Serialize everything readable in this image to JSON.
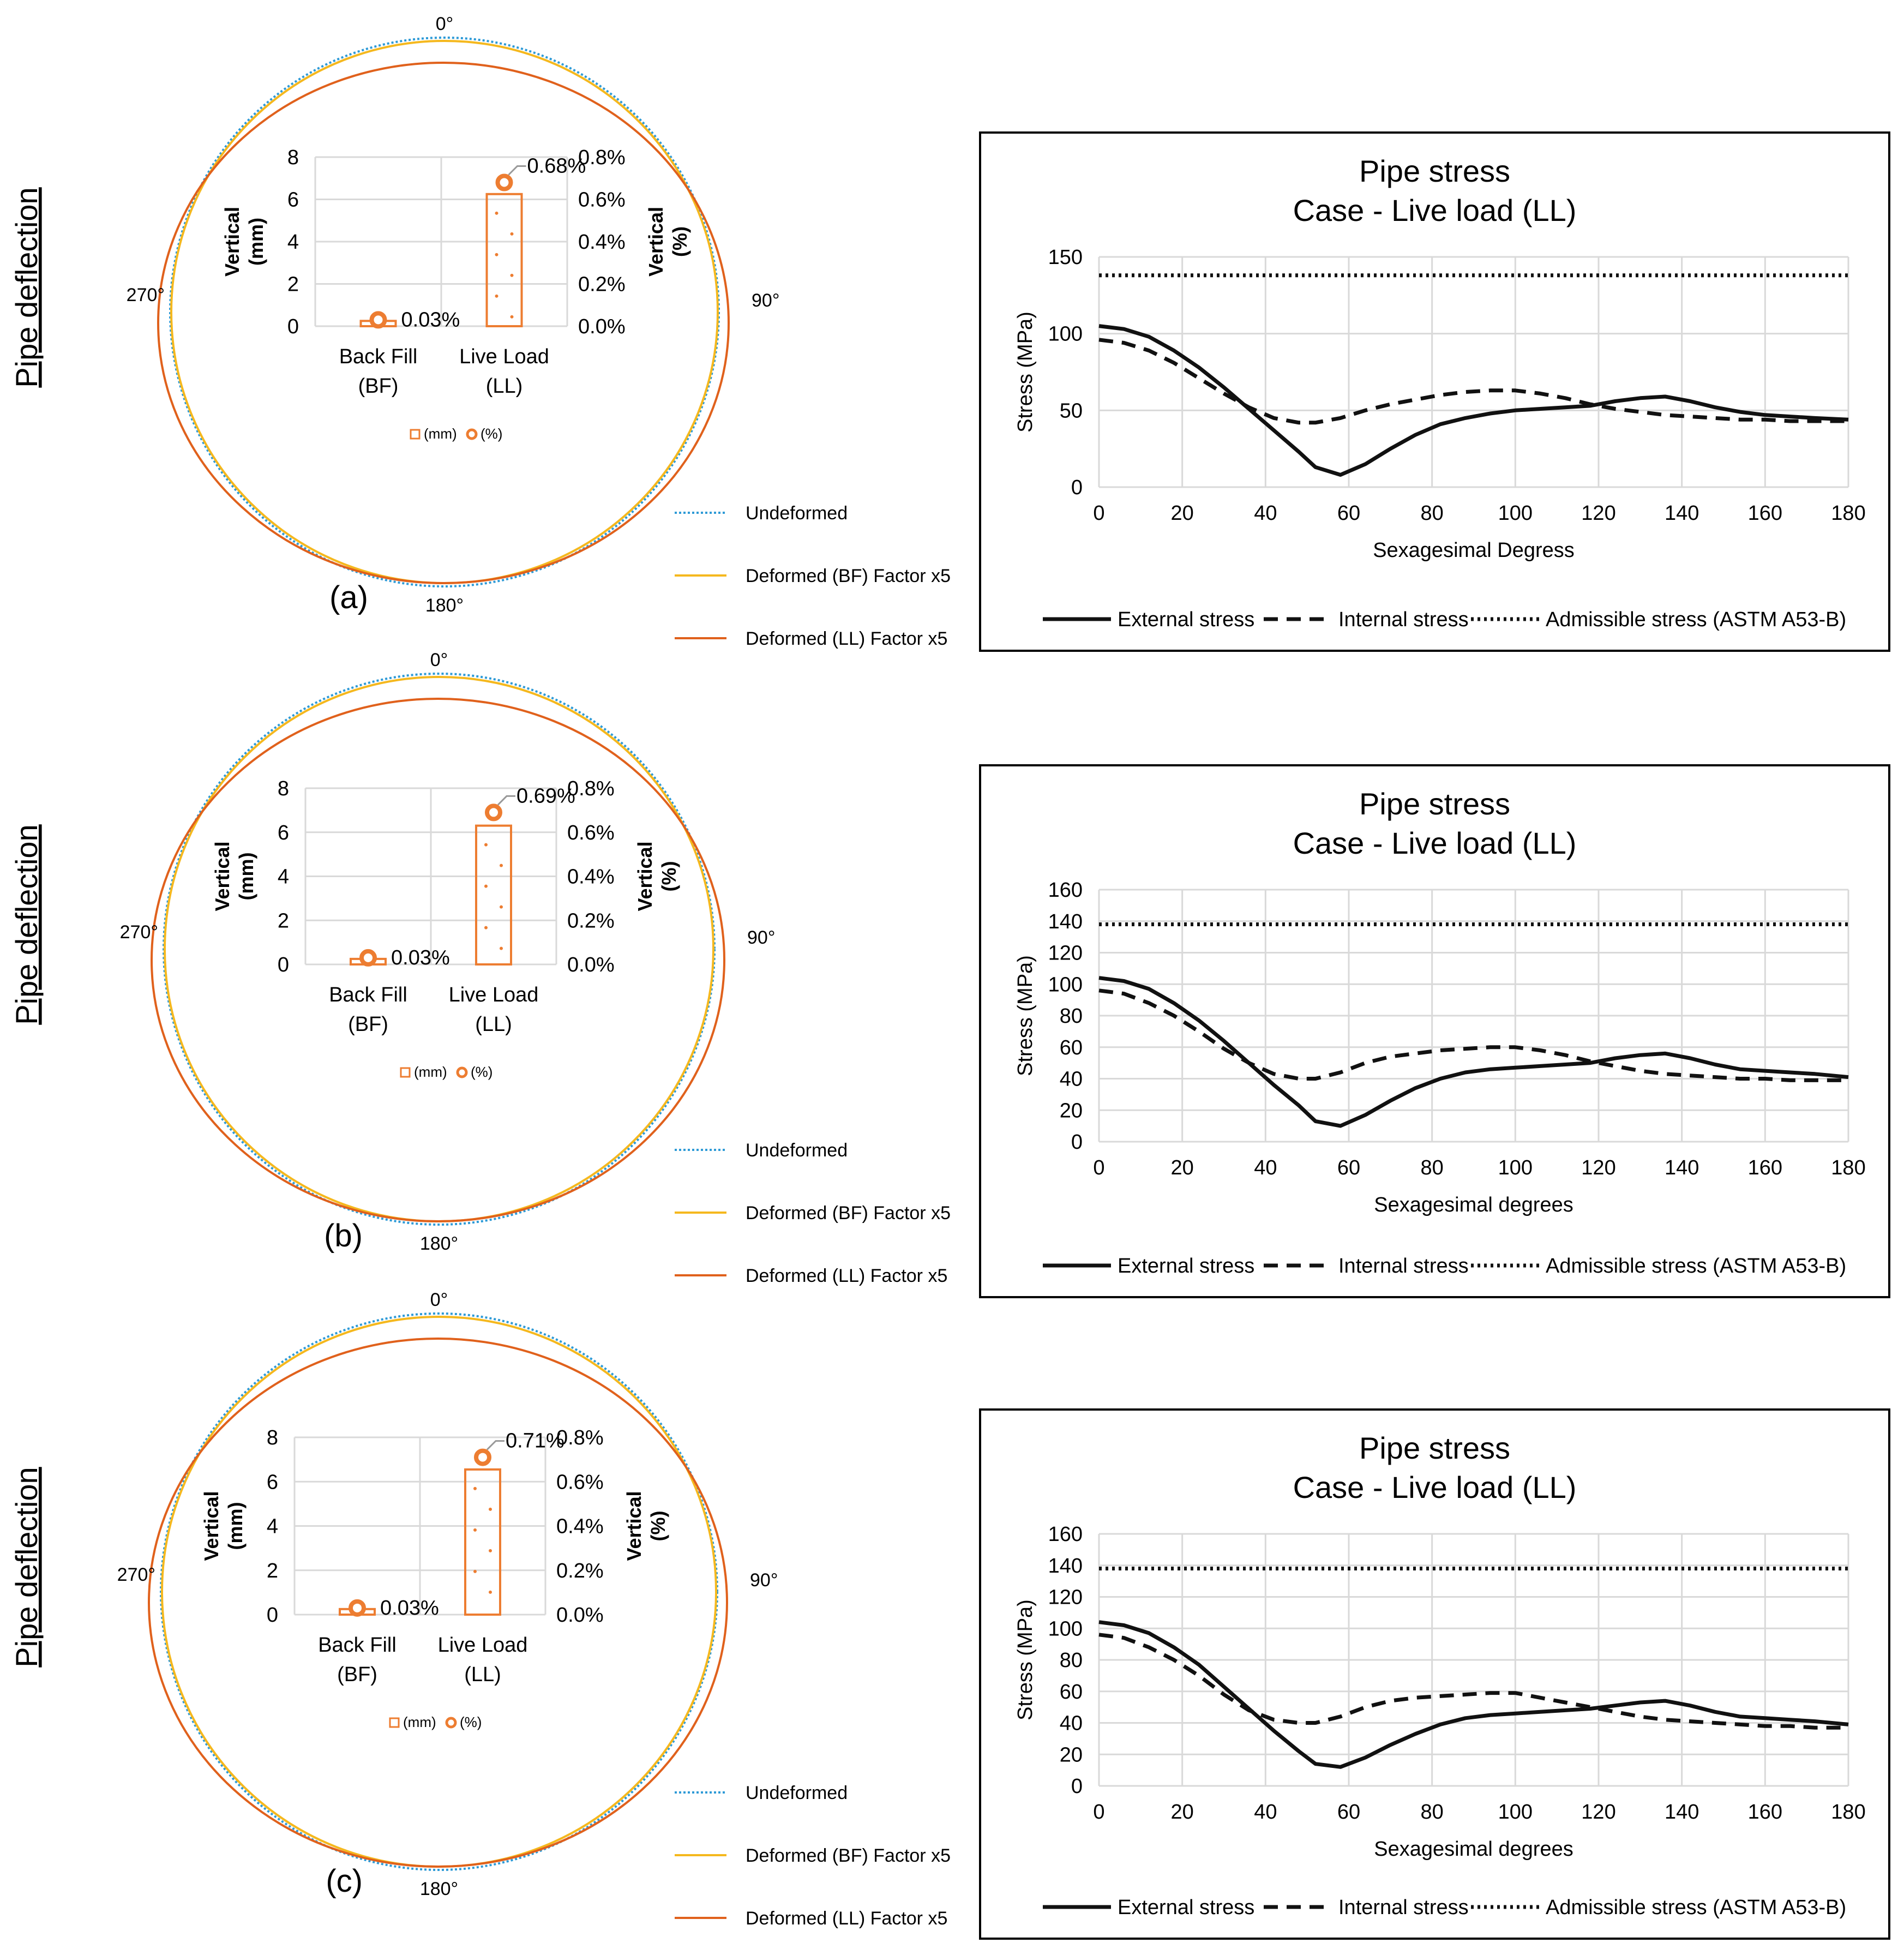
{
  "colors": {
    "undeformed": "#2e9ad6",
    "deformed_bf": "#f5b81e",
    "deformed_ll": "#e0611c",
    "bar": "#ed7d31",
    "stress_line": "#111111",
    "grid": "#d9d9d9",
    "frame": "#000000"
  },
  "panels": [
    {
      "id": "a",
      "section_title": "Pipe deflection",
      "panel_label": "(a)",
      "angles": {
        "top": "0°",
        "right": "90°",
        "bottom": "180°",
        "left": "270°"
      },
      "legend": {
        "undeformed": "Undeformed",
        "deformed_bf": "Deformed (BF) Factor x5",
        "deformed_ll": "Deformed (LL) Factor x5"
      },
      "inset": {
        "categories": [
          [
            "Back Fill",
            "(BF)"
          ],
          [
            "Live Load",
            "(LL)"
          ]
        ],
        "mm_values": [
          0.25,
          6.25
        ],
        "pct_values": [
          0.03,
          0.68
        ],
        "pct_labels": [
          "0.03%",
          "0.68%"
        ],
        "left_ticks": [
          "0",
          "2",
          "4",
          "6",
          "8"
        ],
        "right_ticks": [
          "0.0%",
          "0.2%",
          "0.4%",
          "0.6%",
          "0.8%"
        ],
        "left_axis_title": [
          "Vertical",
          "(mm)"
        ],
        "right_axis_title": [
          "Vertical",
          "(%)"
        ],
        "legend_mm": "(mm)",
        "legend_pct": "(%)"
      },
      "chart_data": {
        "type": "line",
        "title": "Pipe stress",
        "subtitle": "Case - Live load (LL)",
        "xlabel": "Sexagesimal Degress",
        "ylabel": "Stress (MPa)",
        "xlim": [
          0,
          180
        ],
        "ylim": [
          0,
          150
        ],
        "x_ticks": [
          0,
          20,
          40,
          60,
          80,
          100,
          120,
          140,
          160,
          180
        ],
        "y_ticks": [
          0,
          50,
          100,
          150
        ],
        "grid": true,
        "legend_position": "bottom",
        "x": [
          0,
          6,
          12,
          18,
          24,
          30,
          36,
          42,
          48,
          52,
          58,
          64,
          70,
          76,
          82,
          88,
          94,
          100,
          106,
          112,
          118,
          124,
          130,
          136,
          142,
          148,
          154,
          160,
          166,
          172,
          180
        ],
        "series": [
          {
            "name": "External stress",
            "style": "solid",
            "values": [
              105,
              103,
              98,
              89,
              78,
              65,
              51,
              37,
              23,
              13,
              8,
              15,
              25,
              34,
              41,
              45,
              48,
              50,
              51,
              52,
              53,
              56,
              58,
              59,
              56,
              52,
              49,
              47,
              46,
              45,
              44
            ]
          },
          {
            "name": "Internal stress",
            "style": "dashed",
            "values": [
              96,
              94,
              89,
              81,
              71,
              61,
              52,
              45,
              42,
              42,
              45,
              50,
              54,
              57,
              60,
              62,
              63,
              63,
              61,
              58,
              54,
              51,
              49,
              47,
              46,
              45,
              44,
              44,
              43,
              43,
              43
            ]
          },
          {
            "name": "Admissible stress (ASTM A53-B)",
            "style": "dotted",
            "values": [
              138,
              138,
              138,
              138,
              138,
              138,
              138,
              138,
              138,
              138,
              138,
              138,
              138,
              138,
              138,
              138,
              138,
              138,
              138,
              138,
              138,
              138,
              138,
              138,
              138,
              138,
              138,
              138,
              138,
              138,
              138
            ]
          }
        ]
      }
    },
    {
      "id": "b",
      "section_title": "Pipe deflection",
      "panel_label": "(b)",
      "angles": {
        "top": "0°",
        "right": "90°",
        "bottom": "180°",
        "left": "270°"
      },
      "legend": {
        "undeformed": "Undeformed",
        "deformed_bf": "Deformed (BF) Factor x5",
        "deformed_ll": "Deformed (LL) Factor x5"
      },
      "inset": {
        "categories": [
          [
            "Back Fill",
            "(BF)"
          ],
          [
            "Live Load",
            "(LL)"
          ]
        ],
        "mm_values": [
          0.25,
          6.3
        ],
        "pct_values": [
          0.03,
          0.69
        ],
        "pct_labels": [
          "0.03%",
          "0.69%"
        ],
        "left_ticks": [
          "0",
          "2",
          "4",
          "6",
          "8"
        ],
        "right_ticks": [
          "0.0%",
          "0.2%",
          "0.4%",
          "0.6%",
          "0.8%"
        ],
        "left_axis_title": [
          "Vertical",
          "(mm)"
        ],
        "right_axis_title": [
          "Vertical",
          "(%)"
        ],
        "legend_mm": "(mm)",
        "legend_pct": "(%)"
      },
      "chart_data": {
        "type": "line",
        "title": "Pipe stress",
        "subtitle": "Case - Live load (LL)",
        "xlabel": "Sexagesimal  degrees",
        "ylabel": "Stress (MPa)",
        "xlim": [
          0,
          180
        ],
        "ylim": [
          0,
          160
        ],
        "x_ticks": [
          0,
          20,
          40,
          60,
          80,
          100,
          120,
          140,
          160,
          180
        ],
        "y_ticks": [
          0,
          20,
          40,
          60,
          80,
          100,
          120,
          140,
          160
        ],
        "grid": true,
        "legend_position": "bottom",
        "x": [
          0,
          6,
          12,
          18,
          24,
          30,
          36,
          42,
          48,
          52,
          58,
          64,
          70,
          76,
          82,
          88,
          94,
          100,
          106,
          112,
          118,
          124,
          130,
          136,
          142,
          148,
          154,
          160,
          166,
          172,
          180
        ],
        "series": [
          {
            "name": "External stress",
            "style": "solid",
            "values": [
              104,
              102,
              97,
              88,
              77,
              64,
              50,
              36,
              23,
              13,
              10,
              17,
              26,
              34,
              40,
              44,
              46,
              47,
              48,
              49,
              50,
              53,
              55,
              56,
              53,
              49,
              46,
              45,
              44,
              43,
              41
            ]
          },
          {
            "name": "Internal stress",
            "style": "dashed",
            "values": [
              96,
              94,
              88,
              80,
              70,
              59,
              50,
              43,
              40,
              40,
              44,
              50,
              54,
              56,
              58,
              59,
              60,
              60,
              58,
              55,
              51,
              48,
              45,
              43,
              42,
              41,
              40,
              40,
              39,
              39,
              39
            ]
          },
          {
            "name": "Admissible stress (ASTM A53-B)",
            "style": "dotted",
            "values": [
              138,
              138,
              138,
              138,
              138,
              138,
              138,
              138,
              138,
              138,
              138,
              138,
              138,
              138,
              138,
              138,
              138,
              138,
              138,
              138,
              138,
              138,
              138,
              138,
              138,
              138,
              138,
              138,
              138,
              138,
              138
            ]
          }
        ]
      }
    },
    {
      "id": "c",
      "section_title": "Pipe deflection",
      "panel_label": "(c)",
      "angles": {
        "top": "0°",
        "right": "90°",
        "bottom": "180°",
        "left": "270°"
      },
      "legend": {
        "undeformed": "Undeformed",
        "deformed_bf": "Deformed (BF) Factor x5",
        "deformed_ll": "Deformed (LL) Factor x5"
      },
      "inset": {
        "categories": [
          [
            "Back Fill",
            "(BF)"
          ],
          [
            "Live Load",
            "(LL)"
          ]
        ],
        "mm_values": [
          0.25,
          6.55
        ],
        "pct_values": [
          0.03,
          0.71
        ],
        "pct_labels": [
          "0.03%",
          "0.71%"
        ],
        "left_ticks": [
          "0",
          "2",
          "4",
          "6",
          "8"
        ],
        "right_ticks": [
          "0.0%",
          "0.2%",
          "0.4%",
          "0.6%",
          "0.8%"
        ],
        "left_axis_title": [
          "Vertical",
          "(mm)"
        ],
        "right_axis_title": [
          "Vertical",
          "(%)"
        ],
        "legend_mm": "(mm)",
        "legend_pct": "(%)"
      },
      "chart_data": {
        "type": "line",
        "title": "Pipe stress",
        "subtitle": "Case - Live load (LL)",
        "xlabel": "Sexagesimal  degrees",
        "ylabel": "Stress (MPa)",
        "xlim": [
          0,
          180
        ],
        "ylim": [
          0,
          160
        ],
        "x_ticks": [
          0,
          20,
          40,
          60,
          80,
          100,
          120,
          140,
          160,
          180
        ],
        "y_ticks": [
          0,
          20,
          40,
          60,
          80,
          100,
          120,
          140,
          160
        ],
        "grid": true,
        "legend_position": "bottom",
        "x": [
          0,
          6,
          12,
          18,
          24,
          30,
          36,
          42,
          48,
          52,
          58,
          64,
          70,
          76,
          82,
          88,
          94,
          100,
          106,
          112,
          118,
          124,
          130,
          136,
          142,
          148,
          154,
          160,
          166,
          172,
          180
        ],
        "series": [
          {
            "name": "External stress",
            "style": "solid",
            "values": [
              104,
              102,
              97,
              88,
              77,
              63,
              49,
              35,
              22,
              14,
              12,
              18,
              26,
              33,
              39,
              43,
              45,
              46,
              47,
              48,
              49,
              51,
              53,
              54,
              51,
              47,
              44,
              43,
              42,
              41,
              39
            ]
          },
          {
            "name": "Internal stress",
            "style": "dashed",
            "values": [
              96,
              94,
              88,
              80,
              70,
              58,
              48,
              42,
              40,
              40,
              44,
              50,
              54,
              56,
              57,
              58,
              59,
              59,
              56,
              53,
              50,
              47,
              44,
              42,
              41,
              40,
              39,
              38,
              38,
              37,
              37
            ]
          },
          {
            "name": "Admissible stress (ASTM A53-B)",
            "style": "dotted",
            "values": [
              138,
              138,
              138,
              138,
              138,
              138,
              138,
              138,
              138,
              138,
              138,
              138,
              138,
              138,
              138,
              138,
              138,
              138,
              138,
              138,
              138,
              138,
              138,
              138,
              138,
              138,
              138,
              138,
              138,
              138,
              138
            ]
          }
        ]
      }
    }
  ]
}
